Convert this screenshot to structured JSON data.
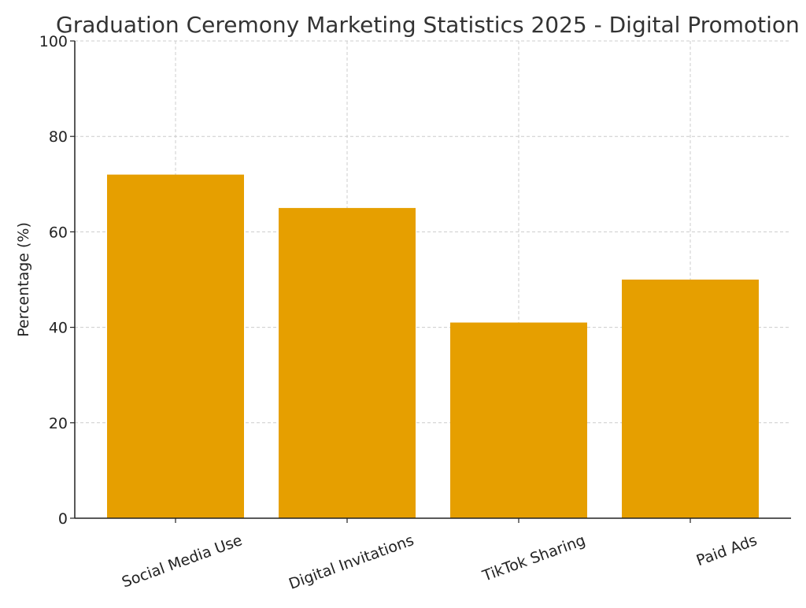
{
  "chart_data": {
    "type": "bar",
    "title": "Graduation Ceremony Marketing Statistics 2025 - Digital Promotion",
    "xlabel": "",
    "ylabel": "Percentage (%)",
    "categories": [
      "Social Media Use",
      "Digital Invitations",
      "TikTok Sharing",
      "Paid Ads"
    ],
    "values": [
      72,
      65,
      41,
      50
    ],
    "ylim": [
      0,
      100
    ],
    "yticks": [
      0,
      20,
      40,
      60,
      80,
      100
    ],
    "grid": true,
    "legend": "none",
    "bar_color": "#E69F00"
  }
}
